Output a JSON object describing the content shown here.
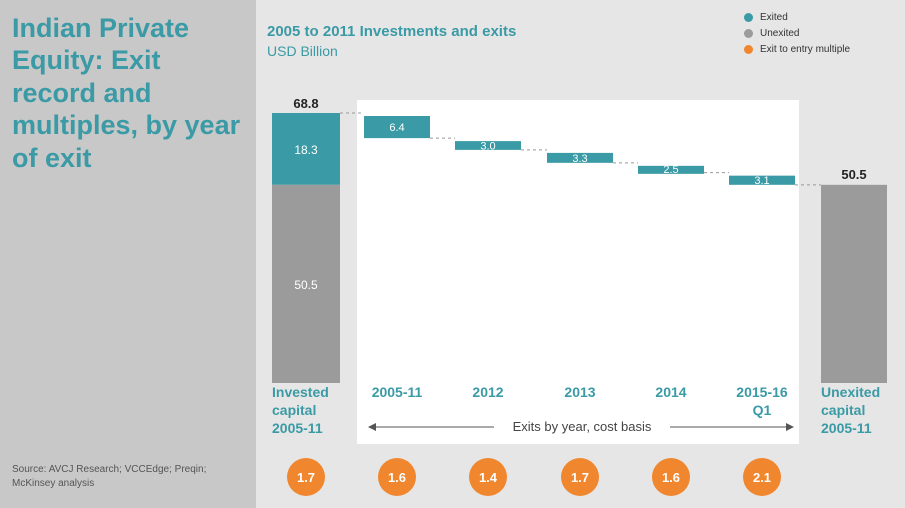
{
  "page": {
    "title": "Indian Private Equity: Exit record and multiples, by year of exit",
    "source": "Source: AVCJ Research; VCCEdge; Preqin; McKinsey analysis"
  },
  "legend": {
    "items": [
      {
        "label": "Exited",
        "color": "#3a9aa5"
      },
      {
        "label": "Unexited",
        "color": "#9b9b9b"
      },
      {
        "label": "Exit to entry multiple",
        "color": "#f0872e"
      }
    ]
  },
  "chart_data": {
    "type": "bar",
    "subtype": "waterfall",
    "title": "2005 to 2011 Investments and exits",
    "subtitle": "USD Billion",
    "colors": {
      "exited": "#3a9aa5",
      "unexited": "#9b9b9b",
      "multiple": "#f0872e"
    },
    "invested": {
      "label": "Invested capital 2005-11",
      "label_lines": [
        "Invested",
        "capital",
        "2005-11"
      ],
      "total": 68.8,
      "total_label": "68.8",
      "exited": 18.3,
      "exited_label": "18.3",
      "unexited": 50.5,
      "unexited_label": "50.5",
      "multiple": 1.7,
      "multiple_label": "1.7"
    },
    "exits": [
      {
        "label": "2005-11",
        "label_lines": [
          "2005-11"
        ],
        "value": 6.4,
        "value_label": "6.4",
        "multiple": 1.6,
        "multiple_label": "1.6"
      },
      {
        "label": "2012",
        "label_lines": [
          "2012"
        ],
        "value": 3.0,
        "value_label": "3.0",
        "multiple": 1.4,
        "multiple_label": "1.4"
      },
      {
        "label": "2013",
        "label_lines": [
          "2013"
        ],
        "value": 3.3,
        "value_label": "3.3",
        "multiple": 1.7,
        "multiple_label": "1.7"
      },
      {
        "label": "2014",
        "label_lines": [
          "2014"
        ],
        "value": 2.5,
        "value_label": "2.5",
        "multiple": 1.6,
        "multiple_label": "1.6"
      },
      {
        "label": "2015-16 Q1",
        "label_lines": [
          "2015-16",
          "Q1"
        ],
        "value": 3.1,
        "value_label": "3.1",
        "multiple": 2.1,
        "multiple_label": "2.1"
      }
    ],
    "unexited": {
      "label": "Unexited capital 2005-11",
      "label_lines": [
        "Unexited",
        "capital",
        "2005-11"
      ],
      "value": 50.5,
      "value_label": "50.5"
    },
    "range_label": "Exits by year, cost basis",
    "ylim": [
      0,
      68.8
    ]
  }
}
